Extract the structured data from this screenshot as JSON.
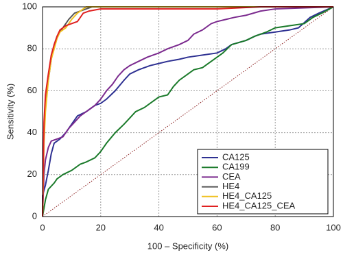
{
  "chart_data": {
    "type": "line",
    "xlabel": "100 – Specificity (%)",
    "ylabel": "Sensitivity (%)",
    "xlim": [
      0,
      100
    ],
    "ylim": [
      0,
      100
    ],
    "xticks": [
      0,
      20,
      40,
      60,
      80,
      100
    ],
    "yticks": [
      0,
      20,
      40,
      60,
      80,
      100
    ],
    "grid": true,
    "diagonal": true,
    "legend": "lower right",
    "series": [
      {
        "name": "CA125",
        "color": "#2e3192",
        "x": [
          0,
          0,
          1,
          2,
          3,
          4,
          6,
          8,
          10,
          12,
          15,
          18,
          20,
          22,
          25,
          28,
          30,
          33,
          37,
          40,
          43,
          47,
          50,
          55,
          60,
          63,
          65,
          70,
          73,
          75,
          80,
          85,
          88,
          92,
          95,
          100
        ],
        "values": [
          0,
          10,
          15,
          22,
          30,
          35,
          37,
          40,
          44,
          48,
          50,
          53,
          54,
          56,
          60,
          65,
          68,
          70,
          72,
          73,
          74,
          75,
          76,
          77,
          78,
          80,
          82,
          84,
          86,
          87,
          88,
          89,
          90,
          95,
          97,
          100
        ]
      },
      {
        "name": "CA199",
        "color": "#1a7a2a",
        "x": [
          0,
          1,
          2,
          4,
          5,
          7,
          10,
          13,
          15,
          18,
          20,
          22,
          25,
          28,
          30,
          32,
          35,
          38,
          40,
          43,
          45,
          47,
          50,
          52,
          55,
          57,
          60,
          62,
          65,
          70,
          73,
          77,
          80,
          85,
          90,
          93,
          96,
          100
        ],
        "values": [
          0,
          8,
          13,
          16,
          18,
          20,
          22,
          25,
          26,
          28,
          31,
          35,
          40,
          44,
          47,
          50,
          52,
          55,
          57,
          58,
          62,
          65,
          68,
          70,
          71,
          73,
          76,
          78,
          82,
          84,
          86,
          88,
          90,
          91,
          92,
          95,
          97,
          100
        ]
      },
      {
        "name": "CEA",
        "color": "#7b2a8e",
        "x": [
          0,
          0.5,
          1,
          2,
          3,
          5,
          7,
          9,
          11,
          13,
          15,
          18,
          20,
          22,
          24,
          26,
          28,
          30,
          33,
          36,
          40,
          43,
          47,
          50,
          52,
          55,
          58,
          60,
          63,
          66,
          70,
          75,
          80,
          100
        ],
        "values": [
          0,
          20,
          27,
          33,
          36,
          37,
          38,
          42,
          45,
          48,
          50,
          53,
          56,
          60,
          63,
          67,
          70,
          72,
          74,
          76,
          78,
          80,
          82,
          84,
          87,
          89,
          92,
          93,
          94,
          95,
          96,
          98,
          99,
          100
        ]
      },
      {
        "name": "HE4",
        "color": "#555555",
        "x": [
          0,
          0.5,
          1,
          2,
          3,
          4,
          5,
          7,
          9,
          11,
          13,
          15,
          17,
          100
        ],
        "values": [
          0,
          40,
          55,
          65,
          75,
          82,
          86,
          90,
          94,
          97,
          98,
          99,
          100,
          100
        ]
      },
      {
        "name": "HE4_CA125",
        "color": "#f0c020",
        "x": [
          0,
          0.5,
          1,
          2,
          3,
          4,
          5,
          6,
          8,
          10,
          12,
          14,
          15,
          100
        ],
        "values": [
          0,
          35,
          50,
          65,
          75,
          80,
          85,
          88,
          90,
          94,
          97,
          99,
          100,
          100
        ]
      },
      {
        "name": "HE4_CA125_CEA",
        "color": "#e02020",
        "x": [
          0,
          0.5,
          1,
          2,
          3,
          4,
          5,
          6,
          8,
          10,
          12,
          13,
          14,
          16,
          20,
          60,
          75,
          100
        ],
        "values": [
          0,
          45,
          58,
          68,
          77,
          82,
          86,
          89,
          91,
          92,
          93,
          95,
          97,
          98,
          99,
          99,
          100,
          100
        ]
      }
    ]
  }
}
